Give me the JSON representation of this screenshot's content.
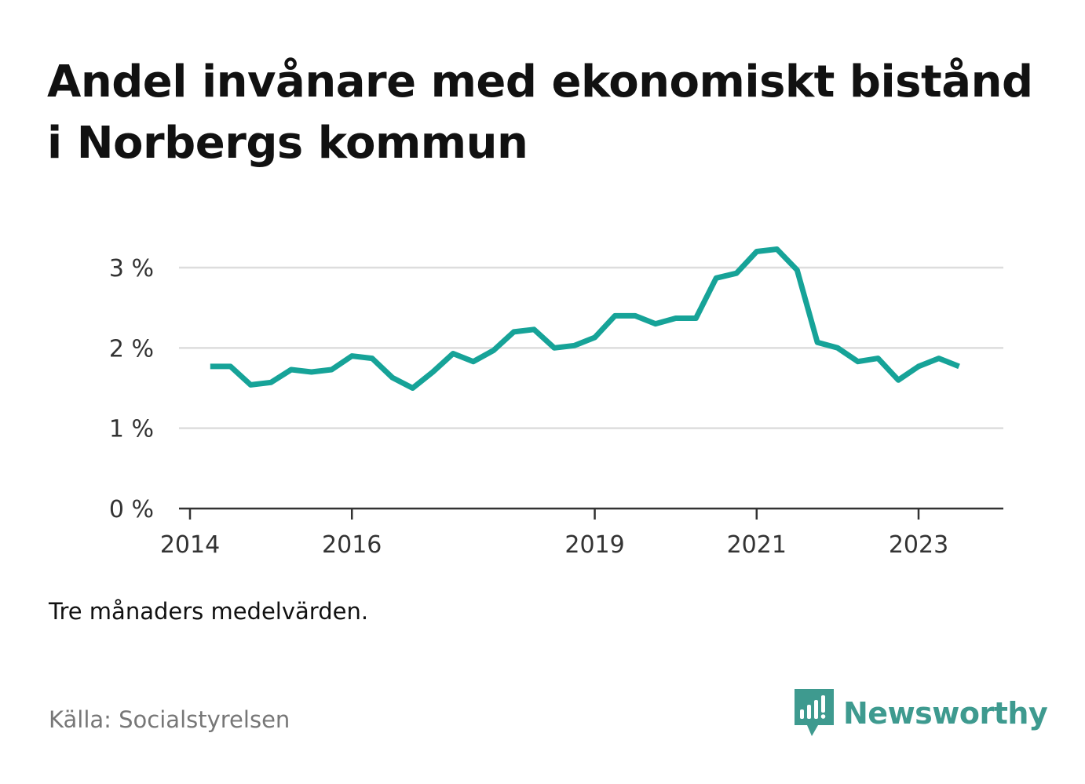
{
  "title": "Andel invånare med ekonomiskt bistånd i Norbergs kommun",
  "note": "Tre månaders medelvärden.",
  "source": "Källa: Socialstyrelsen",
  "brand": {
    "name": "Newsworthy",
    "color": "#3e9a8f"
  },
  "chart_data": {
    "type": "line",
    "title": "Andel invånare med ekonomiskt bistånd i Norbergs kommun",
    "xlabel": "",
    "ylabel": "",
    "ylim": [
      0,
      3
    ],
    "y_ticks": [
      0,
      1,
      2,
      3
    ],
    "y_tick_labels": [
      "0 %",
      "1 %",
      "2 %",
      "3 %"
    ],
    "x_ticks": [
      2014,
      2016,
      2019,
      2021,
      2023
    ],
    "x_tick_labels": [
      "2014",
      "2016",
      "2019",
      "2021",
      "2023"
    ],
    "grid": true,
    "line_color": "#16a398",
    "series": [
      {
        "x": [
          "2014-04",
          "2014-07",
          "2014-10",
          "2015-01",
          "2015-04",
          "2015-07",
          "2015-10",
          "2016-01",
          "2016-04",
          "2016-07",
          "2016-10",
          "2017-01",
          "2017-04",
          "2017-07",
          "2017-10",
          "2018-01",
          "2018-04",
          "2018-07",
          "2018-10",
          "2019-01",
          "2019-04",
          "2019-07",
          "2019-10",
          "2020-01",
          "2020-04",
          "2020-07",
          "2020-10",
          "2021-01",
          "2021-04",
          "2021-07",
          "2021-10",
          "2022-01",
          "2022-04",
          "2022-07",
          "2022-10",
          "2023-01",
          "2023-04",
          "2023-07"
        ],
        "values": [
          1.77,
          1.77,
          1.54,
          1.57,
          1.73,
          1.7,
          1.73,
          1.9,
          1.87,
          1.63,
          1.5,
          1.7,
          1.93,
          1.83,
          1.97,
          2.2,
          2.23,
          2.0,
          2.03,
          2.13,
          2.4,
          2.4,
          2.3,
          2.37,
          2.37,
          2.87,
          2.93,
          3.2,
          3.23,
          2.97,
          2.07,
          2.0,
          1.83,
          1.87,
          1.6,
          1.77,
          1.87,
          1.77
        ]
      }
    ]
  }
}
